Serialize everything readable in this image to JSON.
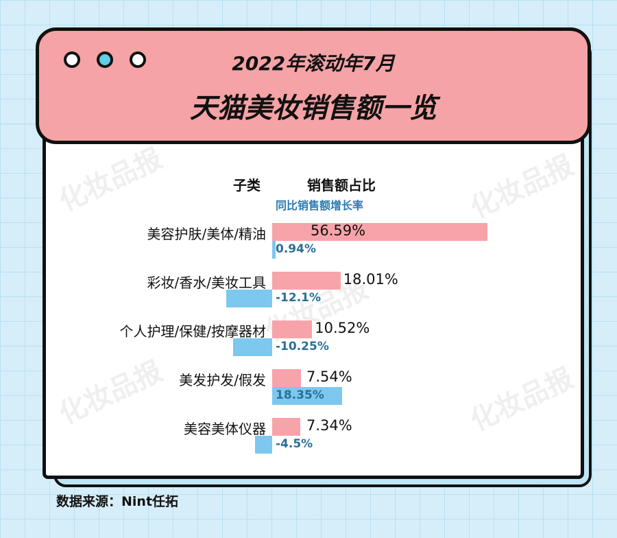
{
  "header": {
    "line1": "2022年滚动年7月",
    "line2": "天猫美妆销售额一览"
  },
  "watermark": "化妆品报",
  "source": "数据来源：Nint任拓",
  "colors": {
    "share": "#f7a3aa",
    "growth": "#7cc8ee",
    "header": "#f5a3a6"
  },
  "chart_data": {
    "type": "bar",
    "orientation": "horizontal",
    "col_header_category": "子类",
    "col_header_share": "销售额占比",
    "col_header_growth": "同比销售额增长率",
    "categories": [
      "美容护肤/美体/精油",
      "彩妆/香水/美妆工具",
      "个人护理/保健/按摩器材",
      "美发护发/假发",
      "美容美体仪器"
    ],
    "series": [
      {
        "name": "销售额占比",
        "values": [
          56.59,
          18.01,
          10.52,
          7.54,
          7.34
        ],
        "labels": [
          "56.59%",
          "18.01%",
          "10.52%",
          "7.54%",
          "7.34%"
        ]
      },
      {
        "name": "同比销售额增长率",
        "values": [
          0.94,
          -12.1,
          -10.25,
          18.35,
          -4.5
        ],
        "labels": [
          "0.94%",
          "-12.1%",
          "-10.25%",
          "18.35%",
          "-4.5%"
        ]
      }
    ]
  }
}
